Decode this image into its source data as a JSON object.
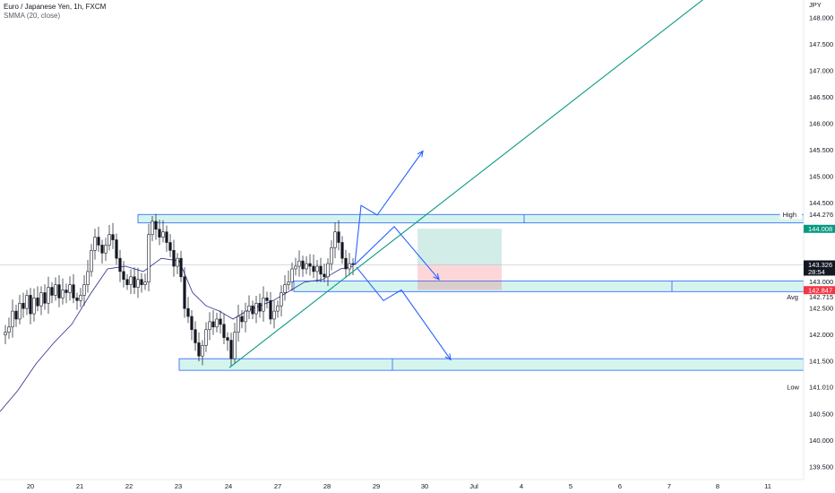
{
  "legend": {
    "title": "Euro / Japanese Yen, 1h, FXCM",
    "indicator": "SMMA (20, close)"
  },
  "chart_data": {
    "type": "candlestick",
    "currency": "JPY",
    "ylim": [
      139.25,
      148.2
    ],
    "y_ticks": [
      "148.000",
      "147.500",
      "147.000",
      "146.500",
      "146.000",
      "145.500",
      "145.000",
      "144.500",
      "143.000",
      "142.500",
      "142.000",
      "141.500",
      "140.500",
      "140.000",
      "139.500"
    ],
    "x_ticks": [
      "20",
      "21",
      "22",
      "23",
      "24",
      "27",
      "28",
      "29",
      "30",
      "Jul",
      "4",
      "5",
      "6",
      "7",
      "8",
      "11"
    ],
    "price_labels": [
      {
        "label": "High",
        "value": "144.276"
      },
      {
        "label": "",
        "value": "144.008",
        "color": "#089981"
      },
      {
        "label": "",
        "value": "143.327",
        "color": "#4a4e5a"
      },
      {
        "label": "",
        "value": "143.326",
        "sub": "28:54",
        "color": "#131722"
      },
      {
        "label": "",
        "value": "142.847",
        "color": "#f23645"
      },
      {
        "label": "Avg",
        "value": "142.715"
      },
      {
        "label": "Low",
        "value": "141.010"
      }
    ],
    "close_path": [
      [
        0,
        142.0
      ],
      [
        6,
        142.05
      ],
      [
        10,
        142.15
      ],
      [
        14,
        142.45
      ],
      [
        18,
        142.3
      ],
      [
        22,
        142.6
      ],
      [
        26,
        142.5
      ],
      [
        30,
        142.75
      ],
      [
        34,
        142.4
      ],
      [
        38,
        142.7
      ],
      [
        42,
        142.55
      ],
      [
        46,
        142.8
      ],
      [
        50,
        142.6
      ],
      [
        54,
        142.9
      ],
      [
        58,
        142.75
      ],
      [
        62,
        142.95
      ],
      [
        66,
        142.7
      ],
      [
        70,
        142.85
      ],
      [
        74,
        142.8
      ],
      [
        78,
        142.95
      ],
      [
        82,
        142.7
      ],
      [
        86,
        142.65
      ],
      [
        90,
        142.75
      ],
      [
        94,
        142.95
      ],
      [
        98,
        143.2
      ],
      [
        102,
        143.6
      ],
      [
        106,
        143.85
      ],
      [
        110,
        143.7
      ],
      [
        114,
        143.55
      ],
      [
        118,
        143.7
      ],
      [
        122,
        143.9
      ],
      [
        126,
        143.8
      ],
      [
        130,
        143.45
      ],
      [
        134,
        143.2
      ],
      [
        138,
        143.05
      ],
      [
        142,
        142.95
      ],
      [
        146,
        143.1
      ],
      [
        150,
        142.9
      ],
      [
        154,
        143.05
      ],
      [
        158,
        142.95
      ],
      [
        162,
        143.0
      ],
      [
        166,
        143.9
      ],
      [
        170,
        144.15
      ],
      [
        174,
        144.0
      ],
      [
        178,
        143.85
      ],
      [
        182,
        143.95
      ],
      [
        186,
        143.75
      ],
      [
        190,
        143.6
      ],
      [
        194,
        143.3
      ],
      [
        198,
        143.45
      ],
      [
        202,
        143.1
      ],
      [
        206,
        142.5
      ],
      [
        210,
        142.35
      ],
      [
        214,
        142.1
      ],
      [
        218,
        141.85
      ],
      [
        222,
        141.6
      ],
      [
        226,
        141.8
      ],
      [
        230,
        142.1
      ],
      [
        234,
        142.25
      ],
      [
        238,
        142.15
      ],
      [
        242,
        142.3
      ],
      [
        246,
        142.2
      ],
      [
        250,
        141.95
      ],
      [
        254,
        141.9
      ],
      [
        258,
        141.55
      ],
      [
        262,
        142.05
      ],
      [
        266,
        142.35
      ],
      [
        270,
        142.25
      ],
      [
        274,
        142.45
      ],
      [
        278,
        142.55
      ],
      [
        282,
        142.4
      ],
      [
        286,
        142.6
      ],
      [
        290,
        142.45
      ],
      [
        294,
        142.7
      ],
      [
        298,
        142.65
      ],
      [
        302,
        142.3
      ],
      [
        306,
        142.45
      ],
      [
        310,
        142.55
      ],
      [
        314,
        142.8
      ],
      [
        318,
        142.95
      ],
      [
        322,
        143.0
      ],
      [
        326,
        143.25
      ],
      [
        330,
        143.3
      ],
      [
        334,
        143.4
      ],
      [
        338,
        143.25
      ],
      [
        342,
        143.35
      ],
      [
        346,
        143.3
      ],
      [
        350,
        143.2
      ],
      [
        354,
        143.3
      ],
      [
        358,
        143.15
      ],
      [
        362,
        143.1
      ],
      [
        366,
        143.35
      ],
      [
        370,
        143.65
      ],
      [
        374,
        143.95
      ],
      [
        378,
        143.75
      ],
      [
        382,
        143.45
      ],
      [
        386,
        143.25
      ],
      [
        390,
        143.35
      ],
      [
        394,
        143.33
      ]
    ],
    "smma_path": [
      [
        0,
        140.55
      ],
      [
        20,
        140.95
      ],
      [
        40,
        141.45
      ],
      [
        60,
        141.85
      ],
      [
        80,
        142.2
      ],
      [
        100,
        142.75
      ],
      [
        120,
        143.25
      ],
      [
        140,
        143.3
      ],
      [
        160,
        143.2
      ],
      [
        180,
        143.45
      ],
      [
        200,
        143.4
      ],
      [
        215,
        142.8
      ],
      [
        230,
        142.55
      ],
      [
        245,
        142.45
      ],
      [
        260,
        142.3
      ],
      [
        275,
        142.45
      ],
      [
        290,
        142.55
      ],
      [
        305,
        142.65
      ],
      [
        320,
        142.8
      ],
      [
        340,
        143.0
      ],
      [
        360,
        143.05
      ],
      [
        380,
        143.25
      ],
      [
        394,
        143.3
      ]
    ],
    "zones": [
      {
        "x0": 154,
        "x1": 932,
        "top": 144.28,
        "bottom": 144.12,
        "split": 585
      },
      {
        "x0": 328,
        "x1": 932,
        "top": 143.02,
        "bottom": 142.82,
        "split": 750
      },
      {
        "x0": 200,
        "x1": 932,
        "top": 141.55,
        "bottom": 141.33,
        "split": 438
      }
    ],
    "position": {
      "x0": 466,
      "x1": 560,
      "tp": 144.01,
      "entry": 143.33,
      "sl": 142.85
    },
    "trendline": {
      "x0": 256,
      "p0": 141.38,
      "x1": 785,
      "p1": 148.35
    },
    "current_price": 143.326,
    "arrows": [
      {
        "points": [
          [
            396,
            143.33
          ],
          [
            403,
            144.45
          ],
          [
            421,
            144.27
          ],
          [
            472,
            145.48
          ]
        ]
      },
      {
        "points": [
          [
            396,
            143.33
          ],
          [
            440,
            144.05
          ],
          [
            490,
            143.05
          ]
        ]
      },
      {
        "points": [
          [
            398,
            143.28
          ],
          [
            428,
            142.65
          ],
          [
            448,
            142.85
          ],
          [
            503,
            141.53
          ]
        ]
      }
    ]
  }
}
